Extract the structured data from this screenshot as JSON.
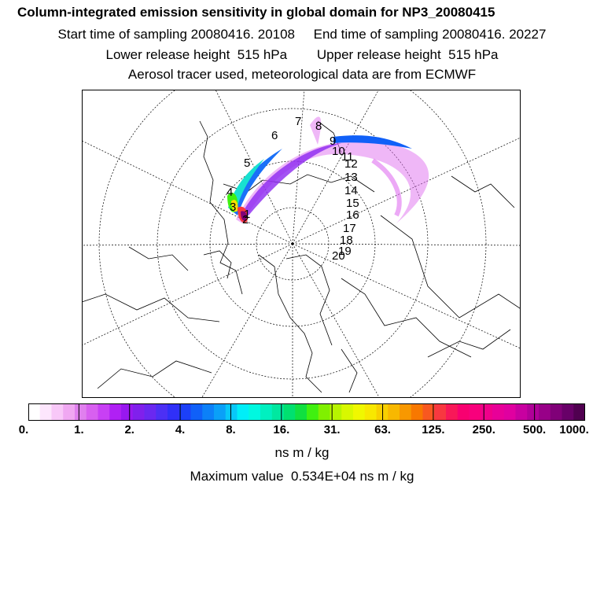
{
  "header": {
    "title": "Column-integrated emission sensitivity in global domain for NP3_20080415",
    "start_label": "Start time of sampling 20080416. 20108",
    "end_label": "End time of sampling 20080416. 20227",
    "lower_label": "Lower release height  515 hPa",
    "upper_label": "Upper release height  515 hPa",
    "source_line": "Aerosol tracer used, meteorological data are from ECMWF"
  },
  "map": {
    "projection": "north-polar-stereographic",
    "trajectory_labels": [
      "1",
      "2",
      "3",
      "4",
      "5",
      "6",
      "7",
      "8",
      "9",
      "10",
      "11",
      "12",
      "13",
      "14",
      "15",
      "16",
      "17",
      "18",
      "19",
      "20"
    ]
  },
  "colorbar": {
    "tick_labels": [
      "0.",
      "1.",
      "2.",
      "4.",
      "8.",
      "16.",
      "31.",
      "63.",
      "125.",
      "250.",
      "500.",
      "1000."
    ],
    "colors": [
      "#ffffff",
      "#fde6fd",
      "#f8c8f8",
      "#f0a8f2",
      "#e080ee",
      "#d860f0",
      "#c840f4",
      "#b020f4",
      "#9818f0",
      "#8020ec",
      "#6a28f0",
      "#4c30f4",
      "#3030f8",
      "#1c40f8",
      "#1060f8",
      "#0c80f8",
      "#0aa0f8",
      "#08c8f8",
      "#00eef8",
      "#00f8e0",
      "#00f0c0",
      "#00e8a0",
      "#00e070",
      "#10e040",
      "#40f010",
      "#80f000",
      "#b8f400",
      "#d8f800",
      "#f0f800",
      "#f8e800",
      "#f8d000",
      "#f8b800",
      "#f89800",
      "#f87800",
      "#f85820",
      "#f83840",
      "#f81858",
      "#f80070",
      "#f8007c",
      "#f0008a",
      "#e80098",
      "#e000a0",
      "#c800a0",
      "#b00098",
      "#980088",
      "#800078",
      "#680068",
      "#500050"
    ],
    "unit": "ns m / kg"
  },
  "footer": {
    "max_value": "Maximum value  0.534E+04 ns m / kg"
  }
}
